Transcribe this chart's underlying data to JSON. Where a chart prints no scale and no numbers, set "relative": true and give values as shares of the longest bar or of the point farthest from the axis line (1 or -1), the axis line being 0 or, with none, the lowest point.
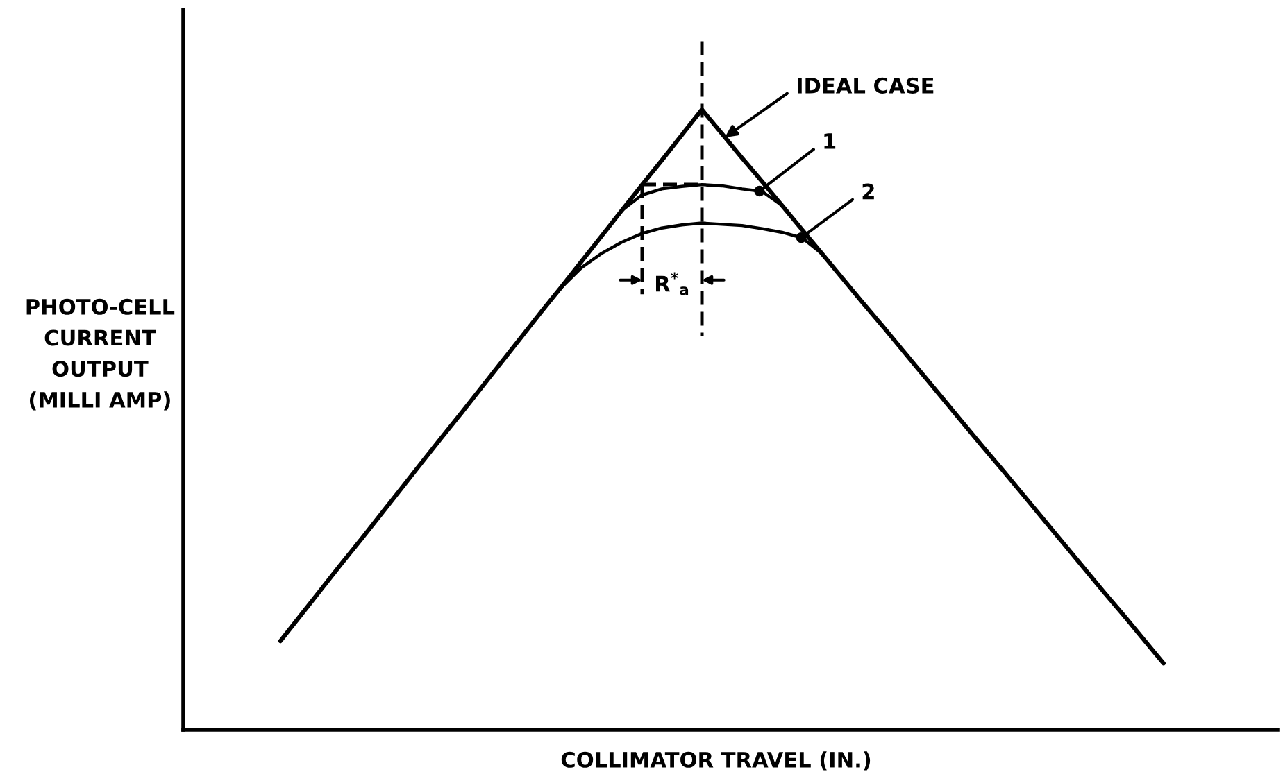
{
  "chart_data": {
    "type": "line",
    "xlabel": "COLLIMATOR TRAVEL (IN.)",
    "ylabel": "PHOTO-CELL\nCURRENT\nOUTPUT\n(MILLI AMP)",
    "relative": true,
    "categories": [
      null,
      null,
      null,
      null,
      null,
      null,
      null,
      null,
      null,
      null,
      null,
      null,
      null,
      null,
      null,
      null,
      null,
      null,
      null,
      null,
      null,
      null,
      null,
      null,
      null,
      null,
      null,
      null,
      null,
      null,
      null,
      null,
      null,
      null,
      null,
      null,
      null,
      null,
      null,
      null,
      null,
      null,
      null,
      null,
      null
    ],
    "series": [
      {
        "name": "IDEAL CASE",
        "color": "#000000",
        "values": [
          0.143,
          0.184,
          0.225,
          0.266,
          0.306,
          0.347,
          0.388,
          0.429,
          0.47,
          0.51,
          0.551,
          0.592,
          0.633,
          0.674,
          0.714,
          0.755,
          0.796,
          0.837,
          0.878,
          0.918,
          0.959,
          1,
          0.961,
          0.922,
          0.884,
          0.845,
          0.806,
          0.767,
          0.728,
          0.689,
          0.651,
          0.612,
          0.573,
          0.534,
          0.495,
          0.456,
          0.418,
          0.379,
          0.34,
          0.301,
          0.262,
          0.223,
          0.185,
          0.146,
          0.107
        ]
      },
      {
        "name": "1",
        "color": "#000000",
        "values": [
          null,
          null,
          null,
          null,
          null,
          null,
          null,
          null,
          null,
          null,
          null,
          null,
          null,
          null,
          null,
          null,
          null,
          0.837,
          0.862,
          0.872,
          0.876,
          0.879,
          0.877,
          0.872,
          0.868,
          0.845,
          null,
          null,
          null,
          null,
          null,
          null,
          null,
          null,
          null,
          null,
          null,
          null,
          null,
          null,
          null,
          null,
          null,
          null,
          null
        ]
      },
      {
        "name": "2",
        "color": "#000000",
        "values": [
          null,
          null,
          null,
          null,
          null,
          null,
          null,
          null,
          null,
          null,
          null,
          null,
          null,
          0.674,
          0.713,
          0.745,
          0.768,
          0.786,
          0.8,
          0.809,
          0.814,
          0.817,
          0.815,
          0.813,
          0.808,
          0.802,
          0.793,
          0.767,
          null,
          null,
          null,
          null,
          null,
          null,
          null,
          null,
          null,
          null,
          null,
          null,
          null,
          null,
          null,
          null,
          null
        ]
      }
    ],
    "annotations": [
      "R$^{*}$$_{a}$"
    ]
  }
}
